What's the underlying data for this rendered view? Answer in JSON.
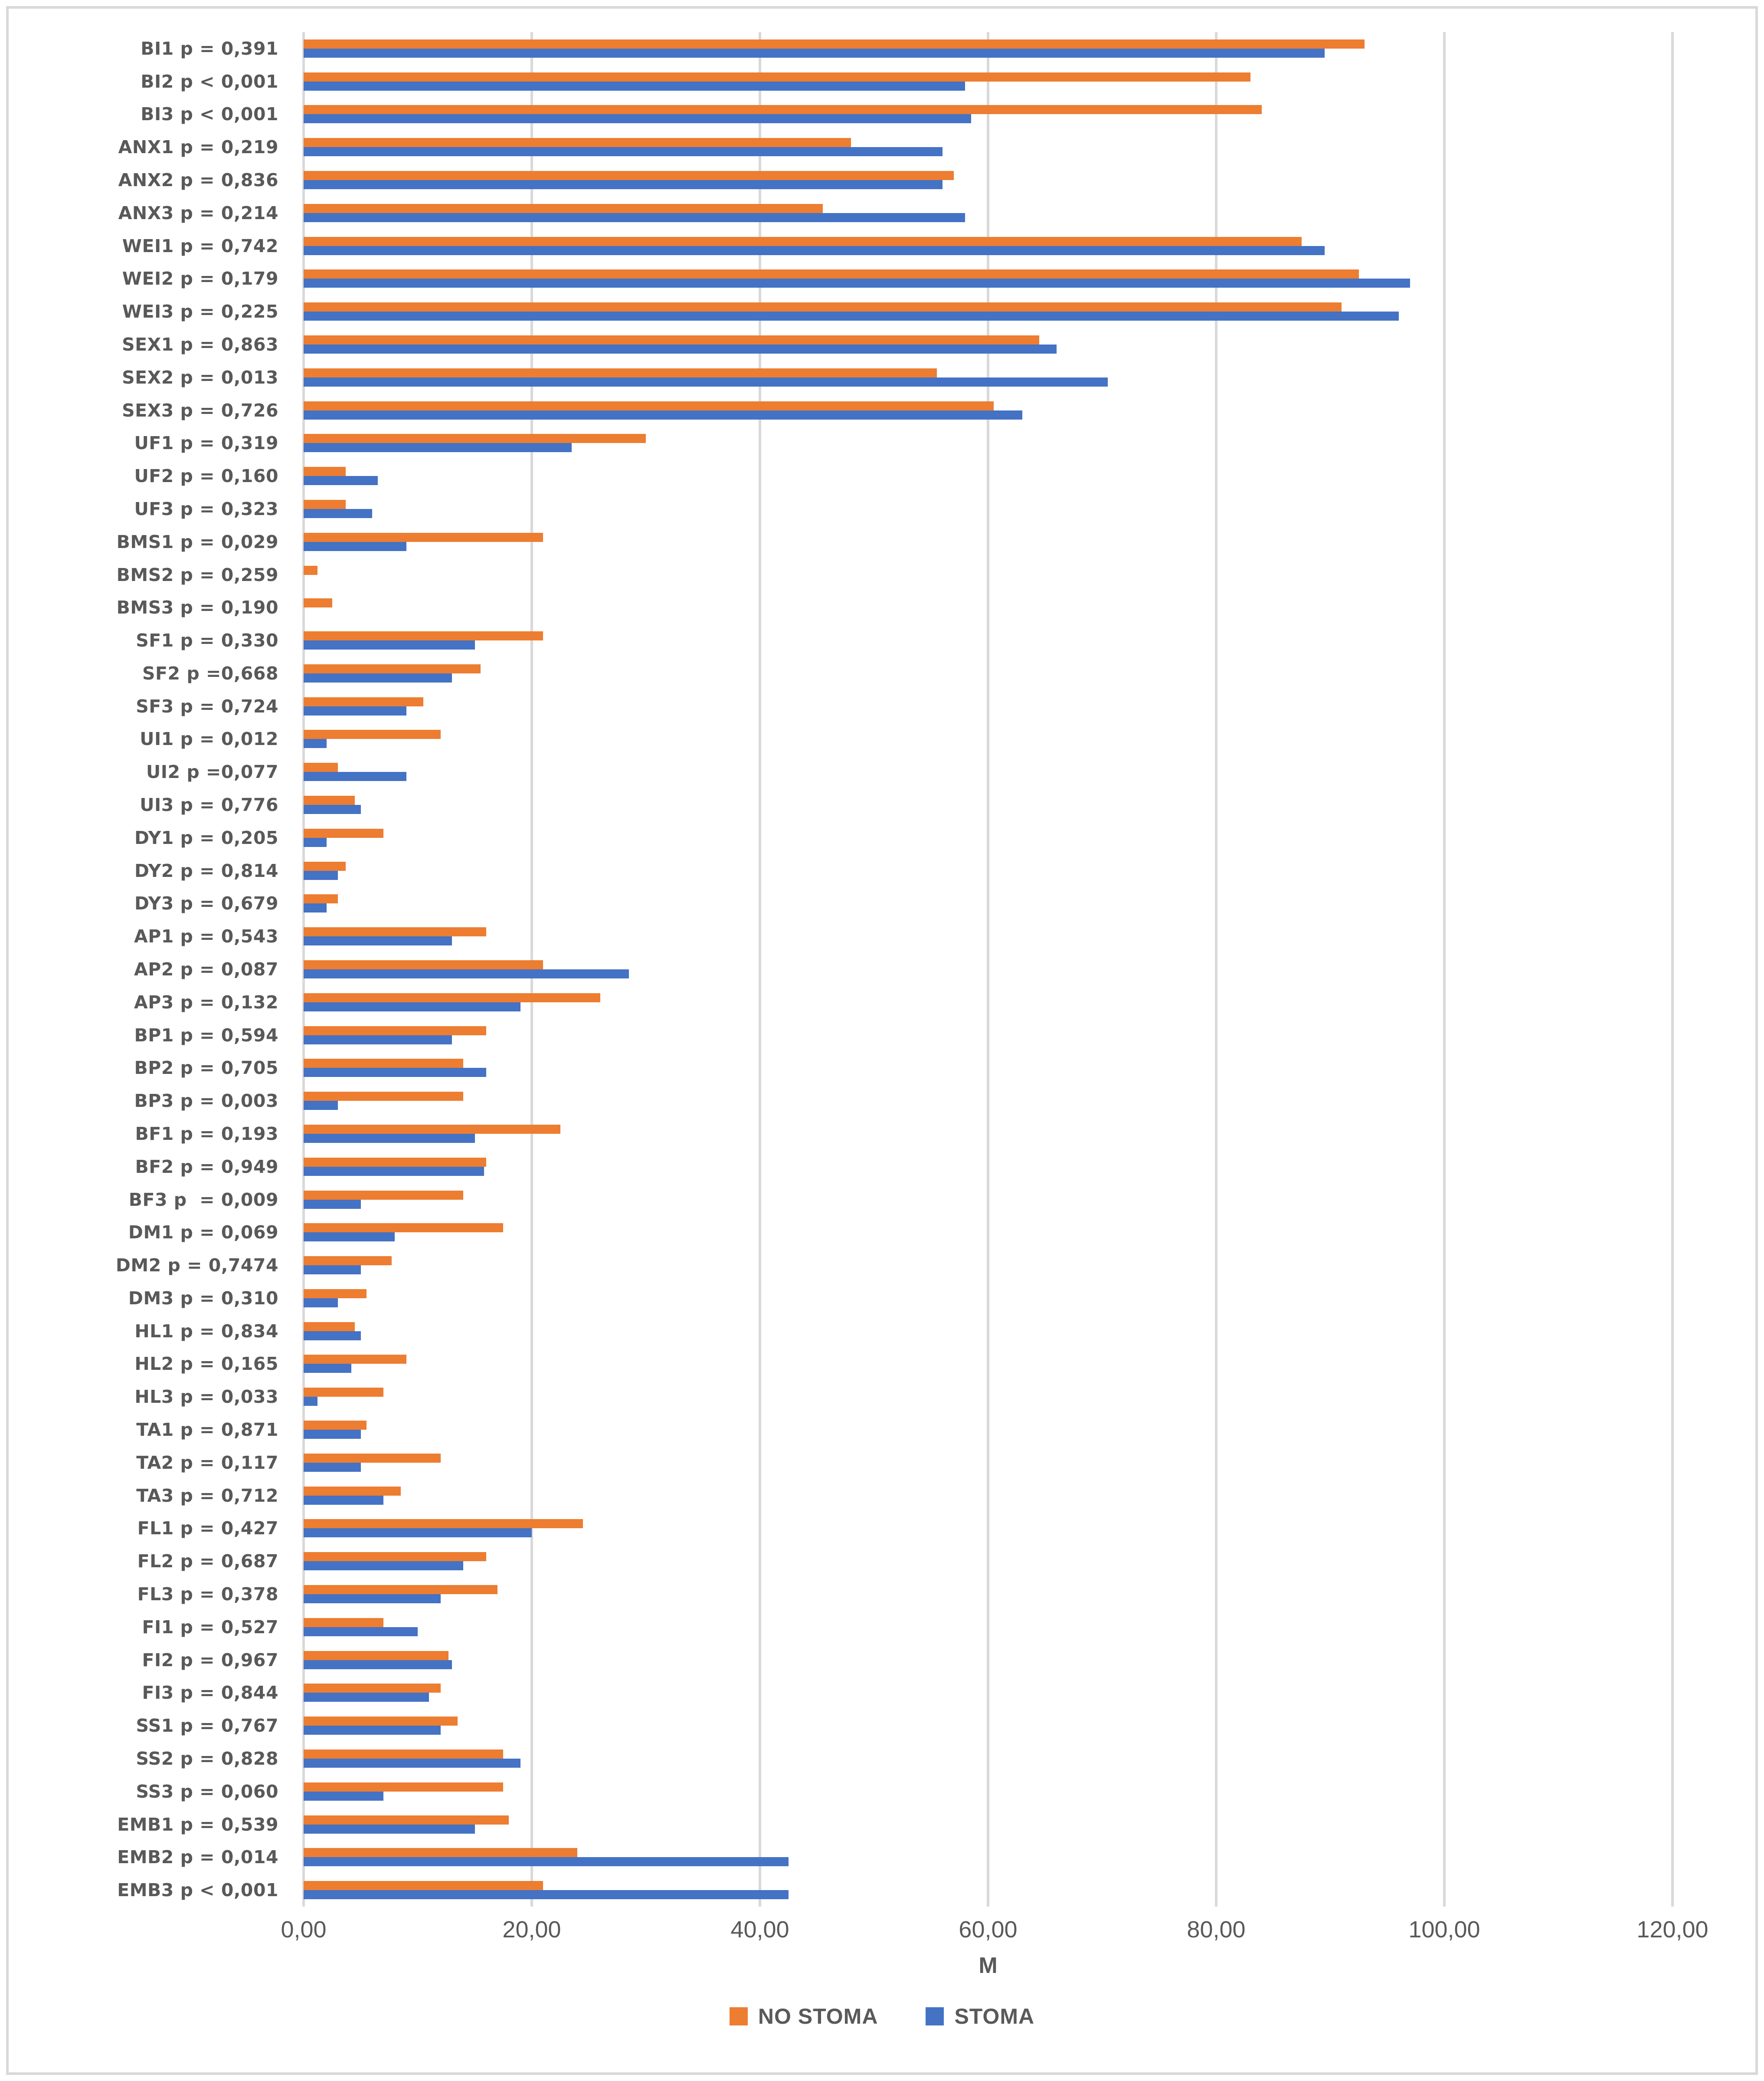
{
  "chart_data": {
    "type": "bar",
    "orientation": "horizontal",
    "title": "",
    "xlabel": "M",
    "ylabel": "",
    "xlim": [
      0,
      120
    ],
    "grid": true,
    "legend_position": "bottom",
    "x_ticks": [
      "0,00",
      "20,00",
      "40,00",
      "60,00",
      "80,00",
      "100,00",
      "120,00"
    ],
    "x_tick_values": [
      0,
      20,
      40,
      60,
      80,
      100,
      120
    ],
    "categories": [
      "BI1 p = 0,391",
      "BI2 p < 0,001",
      "BI3 p < 0,001",
      "ANX1 p = 0,219",
      "ANX2 p = 0,836",
      "ANX3 p = 0,214",
      "WEI1 p = 0,742",
      "WEI2 p = 0,179",
      "WEI3 p = 0,225",
      "SEX1 p = 0,863",
      "SEX2 p = 0,013",
      "SEX3 p = 0,726",
      "UF1 p = 0,319",
      "UF2 p = 0,160",
      "UF3 p = 0,323",
      "BMS1 p = 0,029",
      "BMS2 p = 0,259",
      "BMS3 p = 0,190",
      "SF1 p = 0,330",
      "SF2 p =0,668",
      "SF3 p = 0,724",
      "UI1 p = 0,012",
      "UI2 p =0,077",
      "UI3 p = 0,776",
      "DY1 p = 0,205",
      "DY2 p = 0,814",
      "DY3 p = 0,679",
      "AP1 p = 0,543",
      "AP2 p = 0,087",
      "AP3 p = 0,132",
      "BP1 p = 0,594",
      "BP2 p = 0,705",
      "BP3 p = 0,003",
      "BF1 p = 0,193",
      "BF2 p = 0,949",
      "BF3 p  = 0,009",
      "DM1 p = 0,069",
      "DM2 p = 0,7474",
      "DM3 p = 0,310",
      "HL1 p = 0,834",
      "HL2 p = 0,165",
      "HL3 p = 0,033",
      "TA1 p = 0,871",
      "TA2 p = 0,117",
      "TA3 p = 0,712",
      "FL1 p = 0,427",
      "FL2 p = 0,687",
      "FL3 p = 0,378",
      "FI1 p = 0,527",
      "FI2 p = 0,967",
      "FI3 p = 0,844",
      "SS1 p = 0,767",
      "SS2 p = 0,828",
      "SS3 p = 0,060",
      "EMB1 p = 0,539",
      "EMB2 p = 0,014",
      "EMB3 p < 0,001"
    ],
    "series": [
      {
        "name": "NO STOMA",
        "color": "#ED7D31",
        "values": [
          93,
          83,
          84,
          48,
          57,
          45.5,
          87.5,
          92.5,
          91,
          64.5,
          55.5,
          60.5,
          30,
          3.7,
          3.7,
          21,
          1.2,
          2.5,
          21,
          15.5,
          10.5,
          12,
          3,
          4.5,
          7,
          3.7,
          3,
          16,
          21,
          26,
          16,
          14,
          14,
          22.5,
          16,
          14,
          17.5,
          7.7,
          5.5,
          4.5,
          9,
          7,
          5.5,
          12,
          8.5,
          24.5,
          16,
          17,
          7,
          12.7,
          12,
          13.5,
          17.5,
          17.5,
          18,
          24,
          21
        ]
      },
      {
        "name": "STOMA",
        "color": "#4472C4",
        "values": [
          89.5,
          58,
          58.5,
          56,
          56,
          58,
          89.5,
          97,
          96,
          66,
          70.5,
          63,
          23.5,
          6.5,
          6,
          9,
          0,
          0,
          15,
          13,
          9,
          2,
          9,
          5,
          2,
          3,
          2,
          13,
          28.5,
          19,
          13,
          16,
          3,
          15,
          15.8,
          5,
          8,
          5,
          3,
          5,
          4.2,
          1.2,
          5,
          5,
          7,
          20,
          14,
          12,
          10,
          13,
          11,
          12,
          19,
          7,
          15,
          42.5,
          42.5
        ]
      }
    ]
  },
  "style": {
    "gridline_color": "#d9d9d9",
    "frame_color": "#d9d9d9",
    "text_color": "#595959",
    "background": "#ffffff"
  }
}
